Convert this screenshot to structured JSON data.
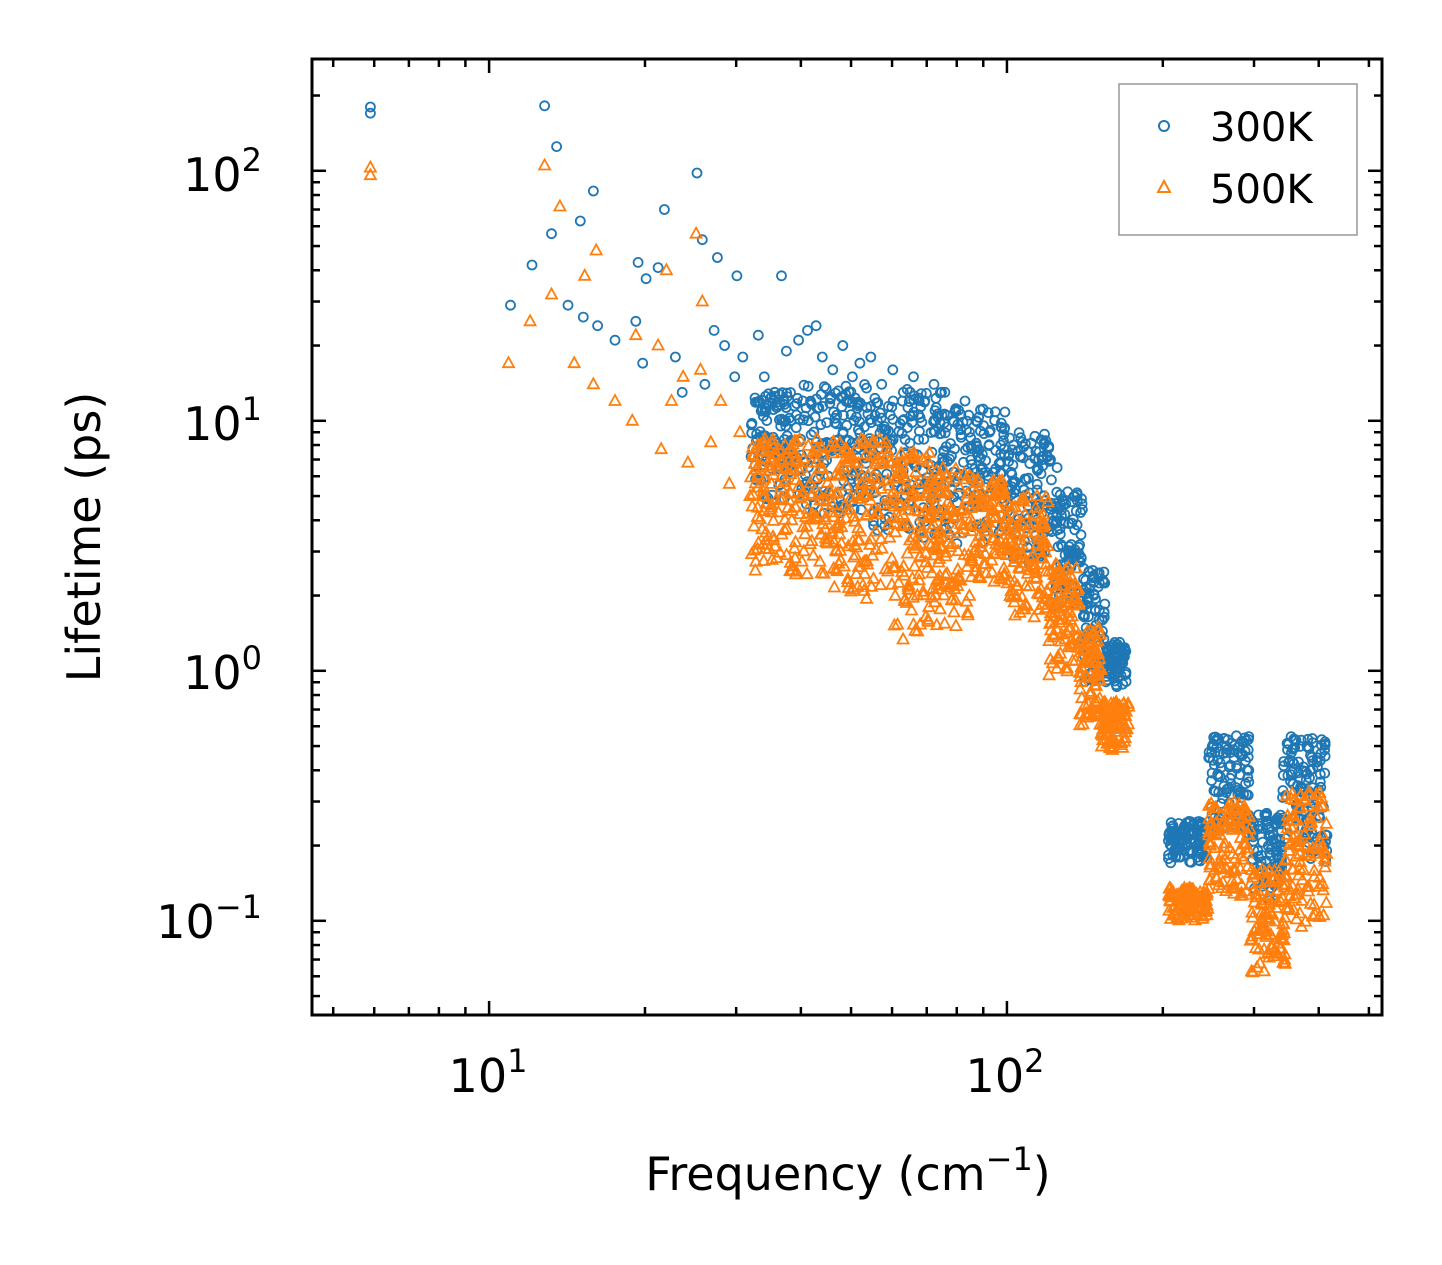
{
  "chart_data": {
    "type": "scatter",
    "title": "",
    "xlabel": "Frequency (cm",
    "xlabel_sup": "−1",
    "xlabel_close": ")",
    "ylabel": "Lifetime (ps)",
    "xscale": "log",
    "yscale": "log",
    "xlim": [
      4.55,
      530
    ],
    "ylim": [
      0.042,
      280
    ],
    "x_ticks": [
      {
        "value": 10,
        "base": "10",
        "exp": "1"
      },
      {
        "value": 100,
        "base": "10",
        "exp": "2"
      }
    ],
    "y_ticks": [
      {
        "value": 0.1,
        "base": "10",
        "exp": "−1"
      },
      {
        "value": 1,
        "base": "10",
        "exp": "0"
      },
      {
        "value": 10,
        "base": "10",
        "exp": "1"
      },
      {
        "value": 100,
        "base": "10",
        "exp": "2"
      }
    ],
    "legend": {
      "position": "top-right"
    },
    "series": [
      {
        "name": "300K",
        "marker": "circle",
        "color": "#1f77b4",
        "points": [
          [
            5.9,
            180
          ],
          [
            5.9,
            170
          ],
          [
            12.8,
            182
          ],
          [
            13.5,
            125
          ],
          [
            12.1,
            42
          ],
          [
            13.2,
            56
          ],
          [
            15.9,
            83
          ],
          [
            15.0,
            63
          ],
          [
            19.4,
            43
          ],
          [
            21.8,
            70
          ],
          [
            20.1,
            37
          ],
          [
            21.2,
            41
          ],
          [
            25.2,
            98
          ],
          [
            25.8,
            53
          ],
          [
            27.6,
            45
          ],
          [
            30.1,
            38
          ],
          [
            36.7,
            38
          ],
          [
            11.0,
            29
          ],
          [
            14.2,
            29
          ],
          [
            15.2,
            26
          ],
          [
            16.2,
            24
          ],
          [
            17.5,
            21
          ],
          [
            19.2,
            25
          ],
          [
            19.8,
            17
          ],
          [
            22.9,
            18
          ],
          [
            23.6,
            13
          ],
          [
            26.1,
            14
          ],
          [
            27.2,
            23
          ],
          [
            28.5,
            20
          ],
          [
            29.8,
            15
          ],
          [
            30.9,
            18
          ],
          [
            33.1,
            22
          ],
          [
            34.0,
            15
          ],
          [
            35.6,
            13
          ],
          [
            37.5,
            19
          ],
          [
            39.6,
            21
          ],
          [
            41.2,
            23
          ],
          [
            42.8,
            24
          ],
          [
            44.0,
            18
          ],
          [
            46.1,
            16
          ],
          [
            48.2,
            20
          ],
          [
            50.3,
            15
          ],
          [
            52.0,
            17
          ],
          [
            54.6,
            18
          ],
          [
            57.3,
            14
          ],
          [
            60.2,
            16
          ],
          [
            63.1,
            13
          ],
          [
            66.0,
            15
          ],
          [
            69.4,
            12
          ],
          [
            72.3,
            14
          ],
          [
            75.9,
            13
          ],
          [
            79.4,
            11
          ],
          [
            83.0,
            12
          ],
          [
            87.2,
            10
          ],
          [
            92.5,
            9
          ],
          [
            97.3,
            8
          ],
          [
            103.0,
            8
          ],
          [
            110.0,
            7.5
          ],
          [
            118.0,
            8.2
          ],
          [
            125.0,
            6.5
          ],
          [
            131.0,
            5.2
          ],
          [
            139.0,
            3.5
          ],
          [
            147.0,
            2.4
          ],
          [
            153.0,
            1.6
          ],
          [
            165.0,
            1.3
          ]
        ],
        "bands": [
          {
            "x": [
              32,
              40
            ],
            "y": [
              4.8,
              13
            ]
          },
          {
            "x": [
              40,
              55
            ],
            "y": [
              4.2,
              14
            ]
          },
          {
            "x": [
              55,
              75
            ],
            "y": [
              3.4,
              13.5
            ]
          },
          {
            "x": [
              75,
              100
            ],
            "y": [
              3.2,
              11.5
            ]
          },
          {
            "x": [
              100,
              122
            ],
            "y": [
              2.7,
              9.0
            ]
          },
          {
            "x": [
              122,
              140
            ],
            "y": [
              1.8,
              5.2
            ]
          },
          {
            "x": [
              140,
              155
            ],
            "y": [
              0.9,
              2.6
            ]
          },
          {
            "x": [
              155,
              170
            ],
            "y": [
              0.85,
              1.3
            ]
          },
          {
            "x": [
              205,
              245
            ],
            "y": [
              0.17,
              0.25
            ]
          },
          {
            "x": [
              245,
              295
            ],
            "y": [
              0.22,
              0.55
            ]
          },
          {
            "x": [
              295,
              340
            ],
            "y": [
              0.12,
              0.27
            ]
          },
          {
            "x": [
              340,
              415
            ],
            "y": [
              0.17,
              0.55
            ]
          }
        ]
      },
      {
        "name": "500K",
        "marker": "triangle",
        "color": "#ff7f0e",
        "points": [
          [
            5.9,
            103
          ],
          [
            5.9,
            96
          ],
          [
            12.8,
            105
          ],
          [
            13.7,
            72
          ],
          [
            15.3,
            38
          ],
          [
            16.1,
            48
          ],
          [
            22.0,
            40
          ],
          [
            25.1,
            56
          ],
          [
            25.8,
            30
          ],
          [
            12.0,
            25
          ],
          [
            13.2,
            32
          ],
          [
            10.9,
            17
          ],
          [
            14.6,
            17
          ],
          [
            15.9,
            14
          ],
          [
            17.5,
            12
          ],
          [
            18.9,
            10
          ],
          [
            19.2,
            22
          ],
          [
            21.2,
            20
          ],
          [
            21.5,
            7.7
          ],
          [
            22.5,
            12
          ],
          [
            23.7,
            15
          ],
          [
            24.2,
            6.8
          ],
          [
            25.6,
            16
          ],
          [
            26.8,
            8.2
          ],
          [
            28.0,
            12
          ],
          [
            29.1,
            5.6
          ],
          [
            30.5,
            9
          ],
          [
            31.9,
            5
          ],
          [
            33.4,
            8
          ],
          [
            35.1,
            4.6
          ],
          [
            36.9,
            7
          ],
          [
            38.4,
            4
          ],
          [
            40.2,
            6.5
          ],
          [
            42.0,
            3.3
          ],
          [
            44.5,
            6
          ],
          [
            46.8,
            3
          ],
          [
            49.0,
            5.5
          ],
          [
            51.7,
            2.6
          ],
          [
            54.5,
            4.8
          ],
          [
            57.0,
            2.2
          ],
          [
            60.3,
            5.2
          ],
          [
            63.4,
            1.9
          ],
          [
            67.0,
            5
          ],
          [
            70.4,
            1.6
          ],
          [
            74.2,
            4.3
          ],
          [
            78.0,
            2.2
          ],
          [
            82.3,
            4.4
          ],
          [
            87.1,
            2.6
          ],
          [
            92.4,
            4.6
          ],
          [
            98.0,
            3.1
          ],
          [
            104.0,
            4.1
          ],
          [
            111.0,
            2.8
          ],
          [
            118.0,
            3.3
          ],
          [
            125.0,
            1.9
          ],
          [
            132.0,
            1.45
          ],
          [
            139.0,
            0.9
          ],
          [
            146.0,
            0.66
          ],
          [
            153.0,
            0.55
          ],
          [
            160.0,
            0.49
          ],
          [
            168.0,
            0.7
          ]
        ],
        "bands": [
          {
            "x": [
              32,
              45
            ],
            "y": [
              2.4,
              8.5
            ]
          },
          {
            "x": [
              45,
              60
            ],
            "y": [
              1.9,
              8.5
            ]
          },
          {
            "x": [
              60,
              72
            ],
            "y": [
              1.3,
              7.5
            ]
          },
          {
            "x": [
              72,
              85
            ],
            "y": [
              1.5,
              6.5
            ]
          },
          {
            "x": [
              85,
              100
            ],
            "y": [
              2.2,
              6.0
            ]
          },
          {
            "x": [
              100,
              120
            ],
            "y": [
              1.6,
              5.0
            ]
          },
          {
            "x": [
              120,
              138
            ],
            "y": [
              0.95,
              2.7
            ]
          },
          {
            "x": [
              138,
              152
            ],
            "y": [
              0.6,
              1.5
            ]
          },
          {
            "x": [
              152,
              172
            ],
            "y": [
              0.48,
              0.75
            ]
          },
          {
            "x": [
              205,
              245
            ],
            "y": [
              0.1,
              0.135
            ]
          },
          {
            "x": [
              245,
              295
            ],
            "y": [
              0.12,
              0.3
            ]
          },
          {
            "x": [
              295,
              345
            ],
            "y": [
              0.062,
              0.16
            ]
          },
          {
            "x": [
              345,
              415
            ],
            "y": [
              0.09,
              0.33
            ]
          }
        ]
      }
    ]
  }
}
